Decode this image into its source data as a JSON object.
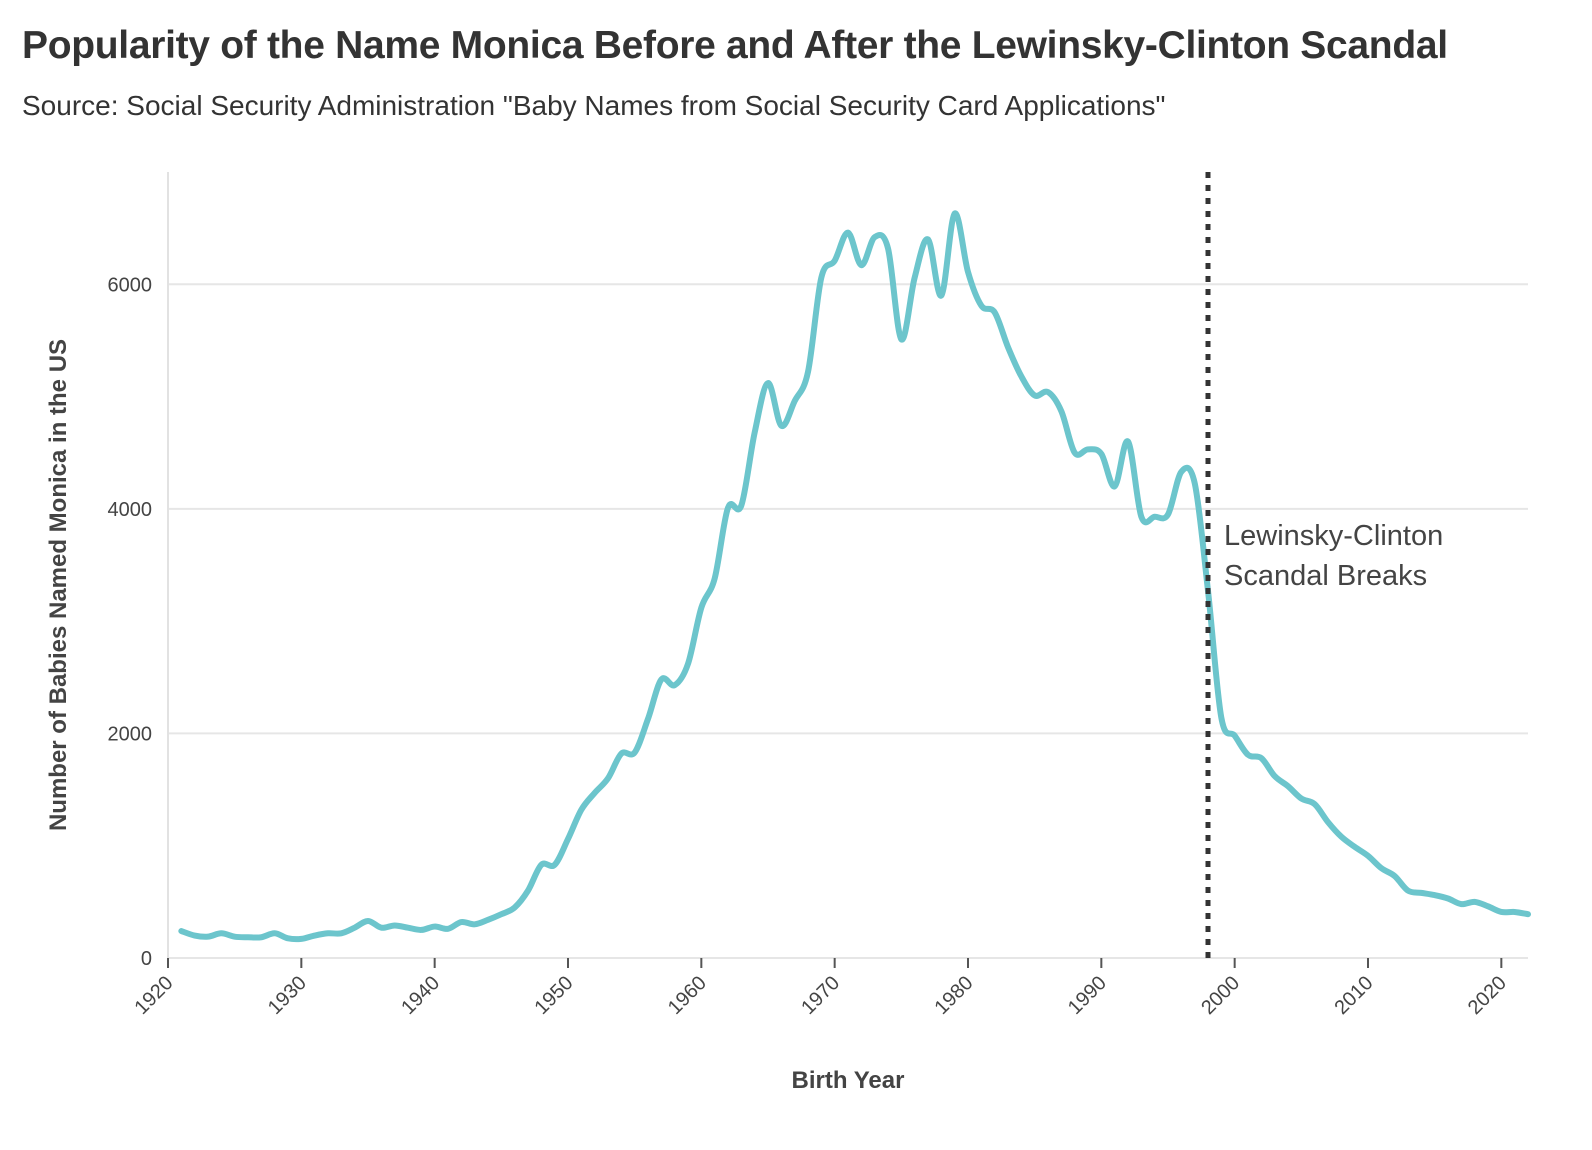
{
  "chart_data": {
    "type": "line",
    "title": "Popularity of the Name Monica Before and After the Lewinsky-Clinton Scandal",
    "subtitle": "Source: Social Security Administration \"Baby Names from Social Security Card Applications\"",
    "xlabel": "Birth Year",
    "ylabel": "Number of Babies Named Monica in the US",
    "xlim": [
      1920,
      2022
    ],
    "ylim": [
      0,
      7000
    ],
    "xticks": [
      "1920",
      "1930",
      "1940",
      "1950",
      "1960",
      "1970",
      "1980",
      "1990",
      "2000",
      "2010",
      "2020"
    ],
    "yticks": [
      "0",
      "2000",
      "4000",
      "6000"
    ],
    "grid": "horizontal",
    "line_color": "#6cc5cc",
    "reference_line": {
      "x": 1998,
      "style": "dotted",
      "color": "#333333",
      "label_lines": [
        "Lewinsky-Clinton",
        "Scandal Breaks"
      ]
    },
    "series": [
      {
        "x": [
          1921,
          1922,
          1923,
          1924,
          1925,
          1926,
          1927,
          1928,
          1929,
          1930,
          1931,
          1932,
          1933,
          1934,
          1935,
          1936,
          1937,
          1938,
          1939,
          1940,
          1941,
          1942,
          1943,
          1944,
          1945,
          1946,
          1947,
          1948,
          1949,
          1950,
          1951,
          1952,
          1953,
          1954,
          1955,
          1956,
          1957,
          1958,
          1959,
          1960,
          1961,
          1962,
          1963,
          1964,
          1965,
          1966,
          1967,
          1968,
          1969,
          1970,
          1971,
          1972,
          1973,
          1974,
          1975,
          1976,
          1977,
          1978,
          1979,
          1980,
          1981,
          1982,
          1983,
          1984,
          1985,
          1986,
          1987,
          1988,
          1989,
          1990,
          1991,
          1992,
          1993,
          1994,
          1995,
          1996,
          1997,
          1998,
          1999,
          2000,
          2001,
          2002,
          2003,
          2004,
          2005,
          2006,
          2007,
          2008,
          2009,
          2010,
          2011,
          2012,
          2013,
          2014,
          2015,
          2016,
          2017,
          2018,
          2019,
          2020,
          2021,
          2022
        ],
        "values": [
          240,
          200,
          190,
          220,
          190,
          185,
          185,
          220,
          175,
          170,
          200,
          220,
          220,
          270,
          330,
          270,
          290,
          270,
          250,
          280,
          260,
          320,
          300,
          340,
          390,
          450,
          600,
          830,
          830,
          1060,
          1320,
          1470,
          1600,
          1820,
          1830,
          2130,
          2480,
          2430,
          2620,
          3120,
          3380,
          4010,
          4030,
          4680,
          5120,
          4740,
          4960,
          5220,
          6060,
          6210,
          6460,
          6170,
          6420,
          6320,
          5510,
          6060,
          6400,
          5900,
          6630,
          6110,
          5810,
          5750,
          5440,
          5180,
          5010,
          5040,
          4870,
          4500,
          4530,
          4490,
          4200,
          4600,
          3930,
          3930,
          3950,
          4330,
          4230,
          3270,
          2140,
          1980,
          1810,
          1780,
          1620,
          1530,
          1420,
          1370,
          1210,
          1080,
          990,
          910,
          800,
          730,
          600,
          580,
          560,
          530,
          480,
          500,
          460,
          410,
          410,
          390
        ]
      }
    ]
  }
}
